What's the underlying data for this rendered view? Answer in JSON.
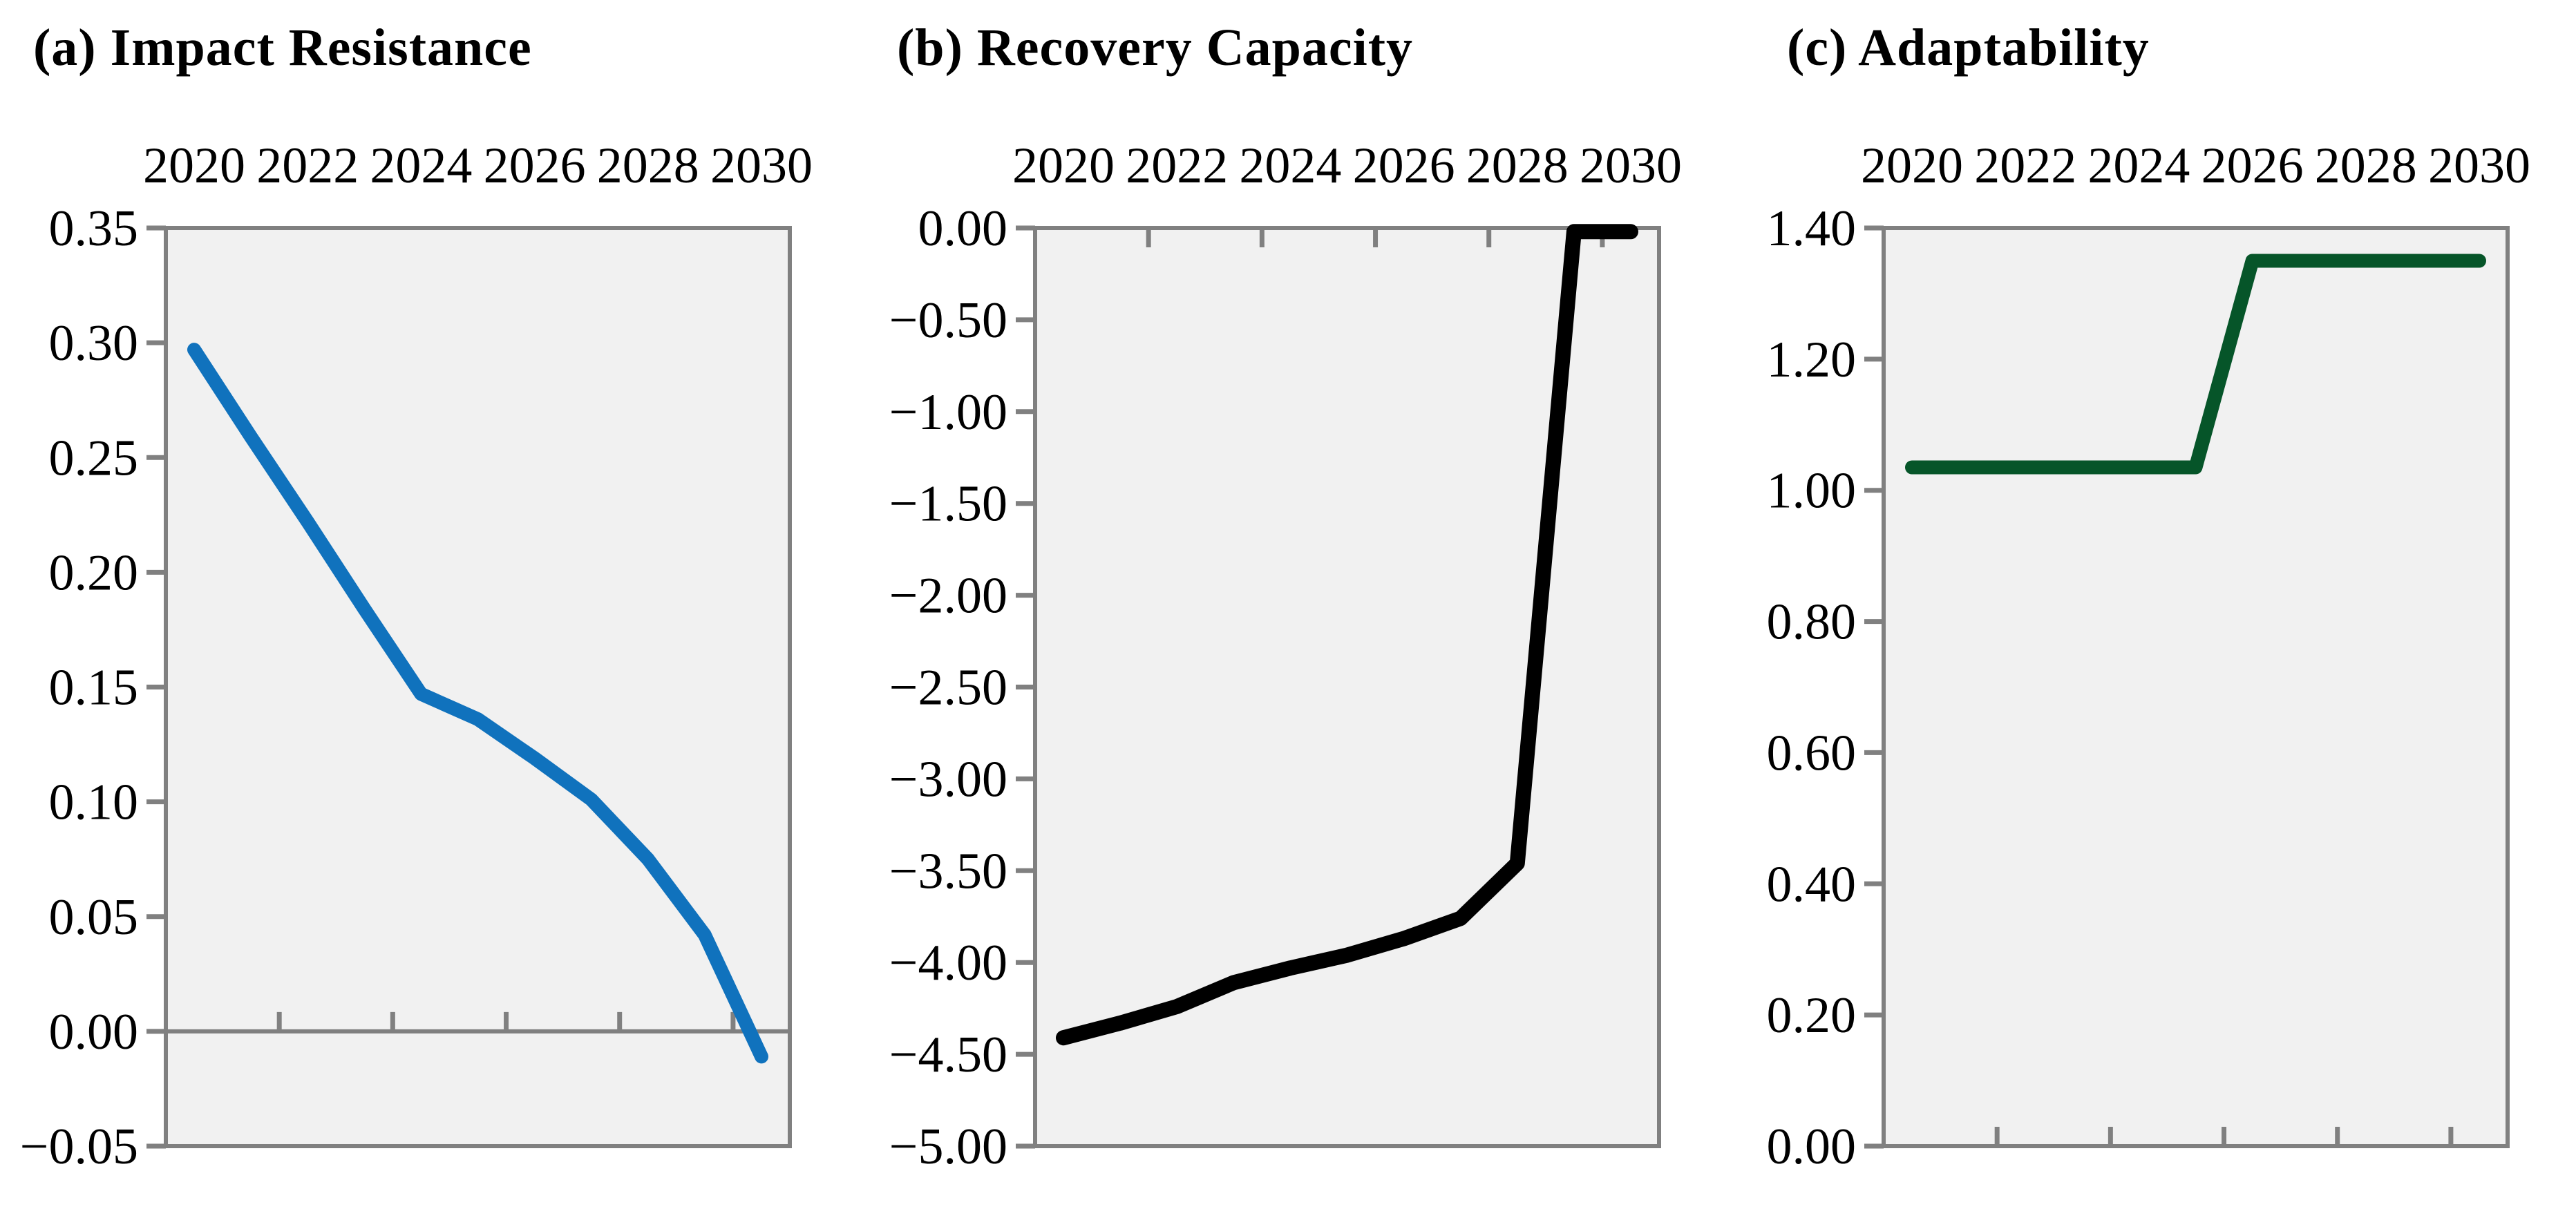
{
  "figure": {
    "background": "#ffffff",
    "plot_bg": "#f1f1f1",
    "axis_color": "#808080"
  },
  "chart_data": [
    {
      "type": "line",
      "title": "(a) Impact Resistance",
      "xlabel_position": "top",
      "xlim": [
        2020,
        2031
      ],
      "x_years": [
        2020,
        2021,
        2022,
        2023,
        2024,
        2025,
        2026,
        2027,
        2028,
        2029,
        2030
      ],
      "x_label_years": [
        2020,
        2022,
        2024,
        2026,
        2028,
        2030
      ],
      "x_labels": [
        "2020",
        "2022",
        "2024",
        "2026",
        "2028",
        "2030"
      ],
      "x_tick_boundary_years": [
        2022,
        2024,
        2026,
        2028,
        2030
      ],
      "ylim": [
        -0.05,
        0.35
      ],
      "yticks": [
        0.35,
        0.3,
        0.25,
        0.2,
        0.15,
        0.1,
        0.05,
        0.0,
        -0.05
      ],
      "ytick_labels": [
        "0.35",
        "0.30",
        "0.25",
        "0.20",
        "0.15",
        "0.10",
        "0.05",
        "0.00",
        "−0.05"
      ],
      "baseline_value": 0,
      "grid": false,
      "legend": "none",
      "series": [
        {
          "name": "impact-resistance",
          "color": "#1072bd",
          "values": [
            0.297,
            0.259,
            0.222,
            0.184,
            0.147,
            0.136,
            0.119,
            0.101,
            0.075,
            0.042,
            -0.011
          ]
        }
      ]
    },
    {
      "type": "line",
      "title": "(b) Recovery Capacity",
      "xlabel_position": "top",
      "xlim": [
        2020,
        2031
      ],
      "x_years": [
        2020,
        2021,
        2022,
        2023,
        2024,
        2025,
        2026,
        2027,
        2028,
        2029,
        2030
      ],
      "x_label_years": [
        2020,
        2022,
        2024,
        2026,
        2028,
        2030
      ],
      "x_labels": [
        "2020",
        "2022",
        "2024",
        "2026",
        "2028",
        "2030"
      ],
      "x_tick_boundary_years": [
        2022,
        2024,
        2026,
        2028,
        2030
      ],
      "ylim": [
        -5.0,
        0.0
      ],
      "yticks": [
        0.0,
        -0.5,
        -1.0,
        -1.5,
        -2.0,
        -2.5,
        -3.0,
        -3.5,
        -4.0,
        -4.5,
        -5.0
      ],
      "ytick_labels": [
        "0.00",
        "−0.50",
        "−1.00",
        "−1.50",
        "−2.00",
        "−2.50",
        "−3.00",
        "−3.50",
        "−4.00",
        "−4.50",
        "−5.00"
      ],
      "baseline_value": 0,
      "grid": false,
      "legend": "none",
      "series": [
        {
          "name": "recovery-capacity",
          "color": "#000000",
          "values": [
            -4.41,
            -4.33,
            -4.24,
            -4.11,
            -4.03,
            -3.96,
            -3.87,
            -3.76,
            -3.46,
            -0.02,
            -0.02
          ]
        }
      ]
    },
    {
      "type": "line",
      "title": "(c) Adaptability",
      "xlabel_position": "top",
      "xlim": [
        2020,
        2031
      ],
      "x_years": [
        2020,
        2021,
        2022,
        2023,
        2024,
        2025,
        2026,
        2027,
        2028,
        2029,
        2030
      ],
      "x_label_years": [
        2020,
        2022,
        2024,
        2026,
        2028,
        2030
      ],
      "x_labels": [
        "2020",
        "2022",
        "2024",
        "2026",
        "2028",
        "2030"
      ],
      "x_tick_boundary_years": [
        2022,
        2024,
        2026,
        2028,
        2030
      ],
      "ylim": [
        0.0,
        1.4
      ],
      "yticks": [
        1.4,
        1.2,
        1.0,
        0.8,
        0.6,
        0.4,
        0.2,
        0.0
      ],
      "ytick_labels": [
        "1.40",
        "1.20",
        "1.00",
        "0.80",
        "0.60",
        "0.40",
        "0.20",
        "0.00"
      ],
      "baseline_value": 0,
      "grid": false,
      "legend": "none",
      "series": [
        {
          "name": "adaptability",
          "color": "#065529",
          "values": [
            1.035,
            1.035,
            1.035,
            1.035,
            1.035,
            1.035,
            1.35,
            1.35,
            1.35,
            1.35,
            1.35
          ]
        }
      ]
    }
  ]
}
